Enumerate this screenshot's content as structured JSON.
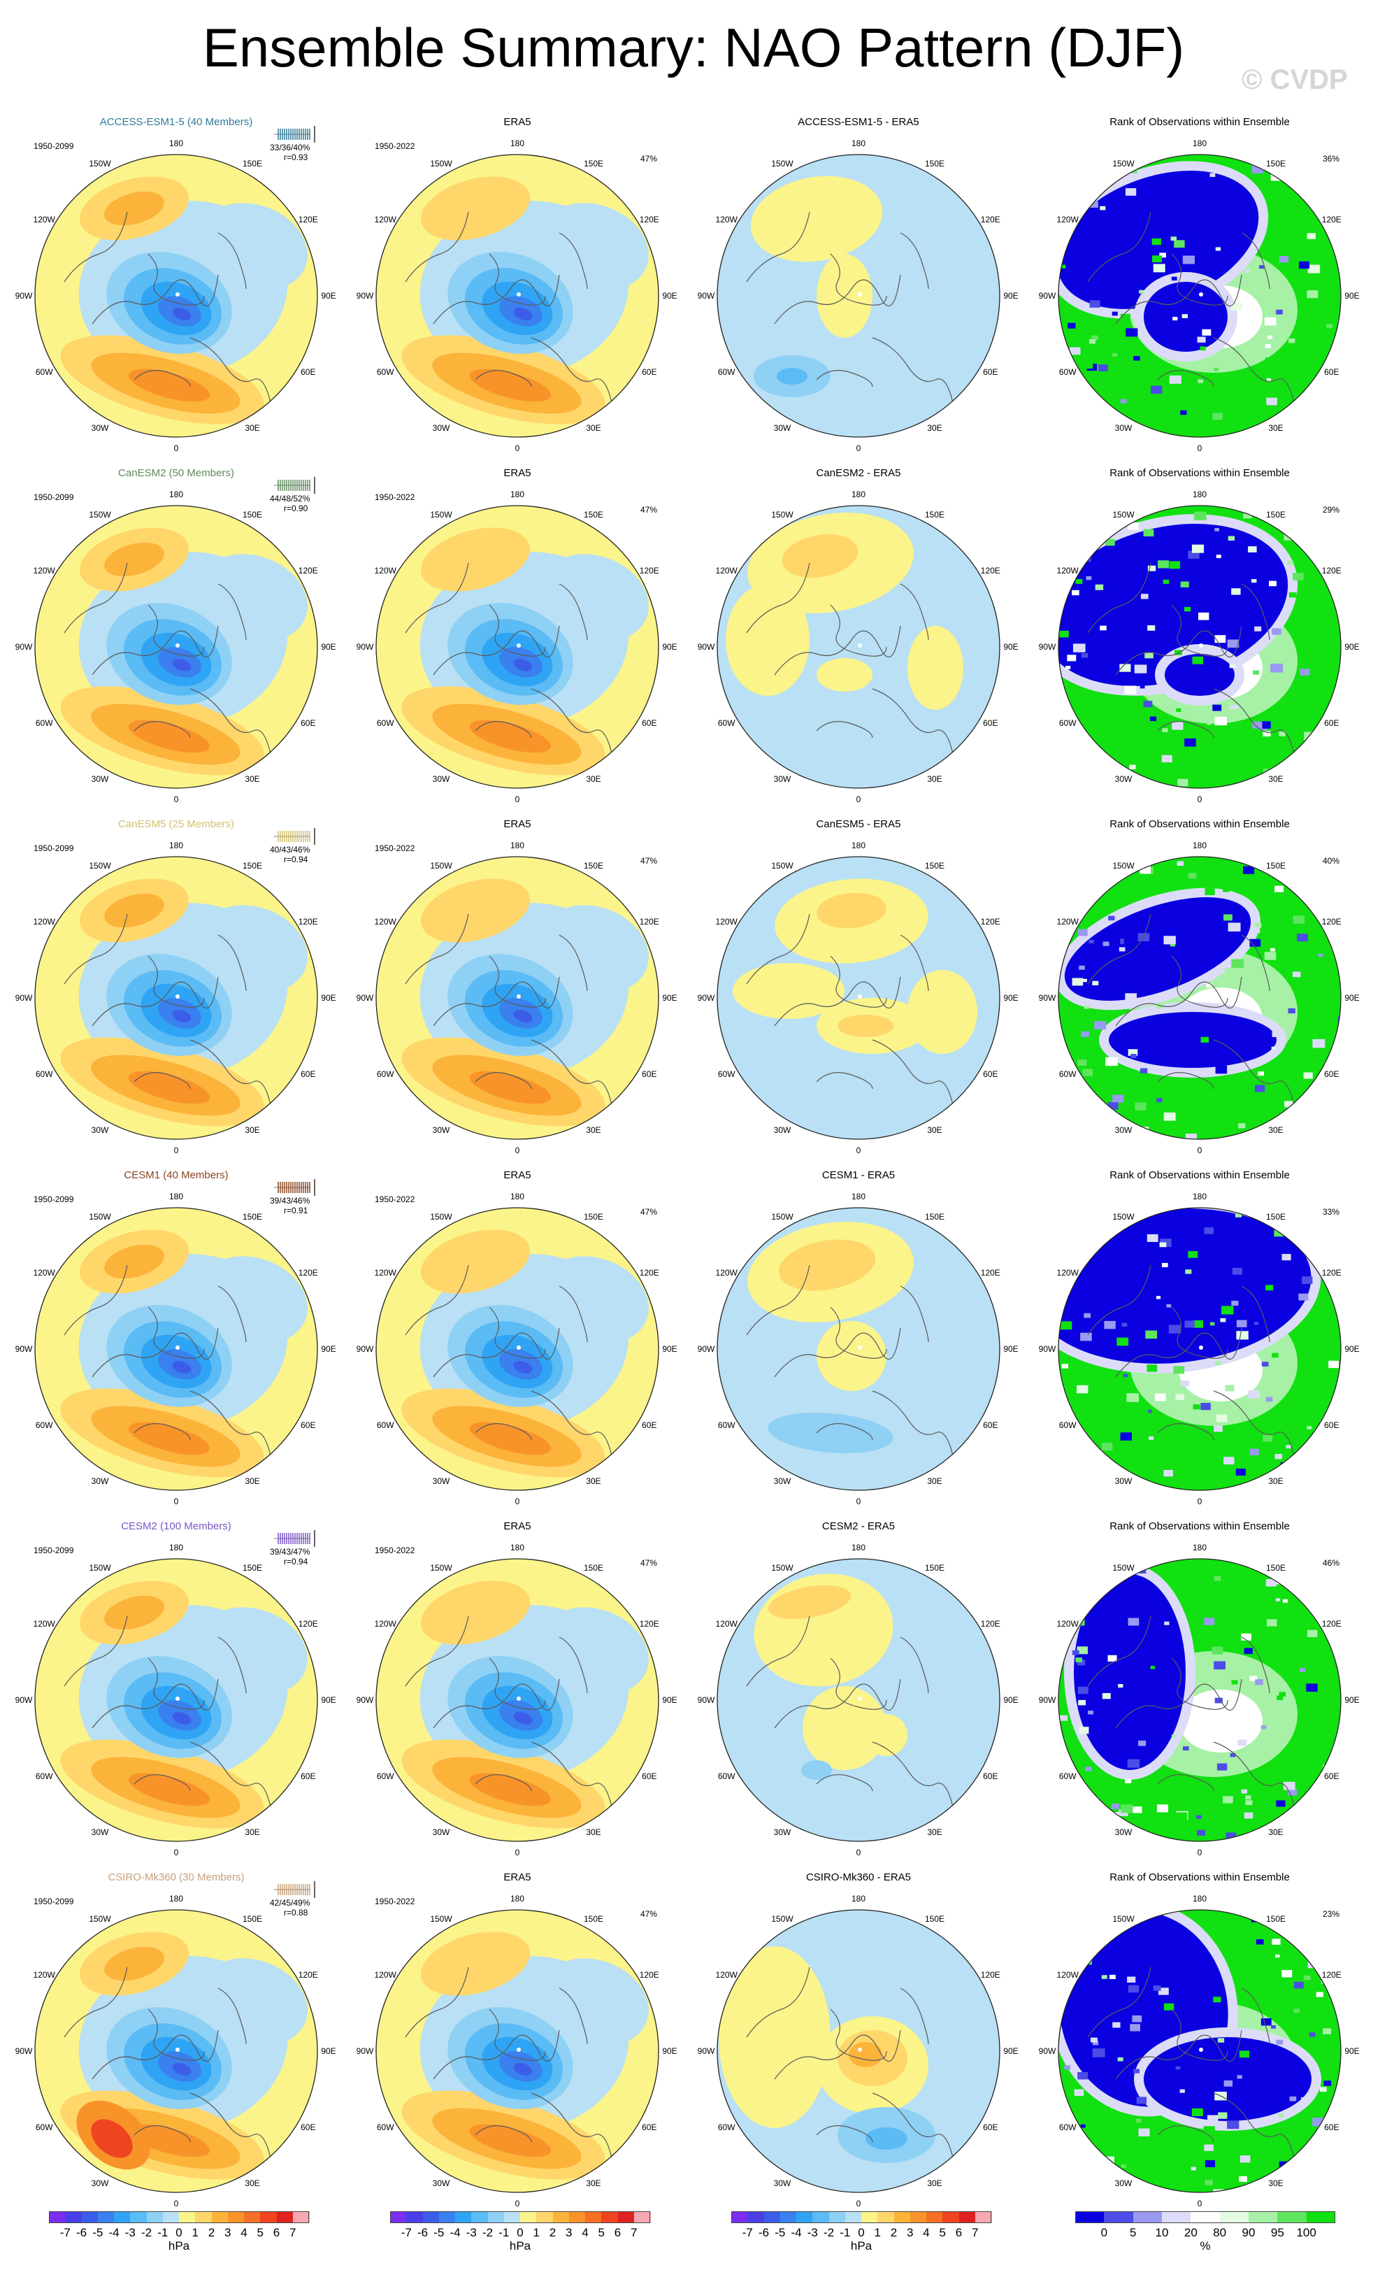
{
  "title": "Ensemble Summary: NAO Pattern (DJF)",
  "watermark": "© CVDP",
  "lon_labels": [
    "180",
    "150E",
    "120E",
    "90E",
    "60E",
    "30E",
    "0",
    "30W",
    "60W",
    "90W",
    "120W",
    "150W"
  ],
  "contour_scale": {
    "unit": "hPa",
    "labels": [
      "-7",
      "-6",
      "-5",
      "-4",
      "-3",
      "-2",
      "-1",
      "0",
      "1",
      "2",
      "3",
      "4",
      "5",
      "6",
      "7"
    ],
    "colors": [
      "#7b2df0",
      "#4a3fe6",
      "#3b5de8",
      "#3a80ee",
      "#2fa4f4",
      "#5abbf5",
      "#8fd0f5",
      "#b9e0f4",
      "#fbf48a",
      "#ffd66a",
      "#fbb33a",
      "#f8932a",
      "#f47025",
      "#ee4420",
      "#df2121",
      "#f7a8b2"
    ]
  },
  "rank_scale": {
    "unit": "%",
    "labels": [
      "0",
      "5",
      "10",
      "20",
      "80",
      "90",
      "95",
      "100"
    ],
    "colors": [
      "#0a00e0",
      "#4c4ce6",
      "#9a9af0",
      "#dcdcf8",
      "#ffffff",
      "#e4fbe4",
      "#a6f1a6",
      "#5de65d",
      "#11e011"
    ]
  },
  "era5_title": "ERA5",
  "era5_period": "1950-2022",
  "era5_pct": "47%",
  "rank_title": "Rank of Observations within Ensemble",
  "rows": [
    {
      "model": "ACCESS-ESM1-5 (40 Members)",
      "color": "#2e7a95",
      "period": "1950-2099",
      "stats": "33/36/40%",
      "corr": "r=0.93",
      "diff_title": "ACCESS-ESM1-5 - ERA5",
      "rank_pct": "36%"
    },
    {
      "model": "CanESM2 (50 Members)",
      "color": "#5f8a5a",
      "period": "1950-2099",
      "stats": "44/48/52%",
      "corr": "r=0.90",
      "diff_title": "CanESM2 - ERA5",
      "rank_pct": "29%"
    },
    {
      "model": "CanESM5 (25 Members)",
      "color": "#d0c070",
      "period": "1950-2099",
      "stats": "40/43/46%",
      "corr": "r=0.94",
      "diff_title": "CanESM5 - ERA5",
      "rank_pct": "40%"
    },
    {
      "model": "CESM1 (40 Members)",
      "color": "#8a4420",
      "period": "1950-2099",
      "stats": "39/43/46%",
      "corr": "r=0.91",
      "diff_title": "CESM1 - ERA5",
      "rank_pct": "33%"
    },
    {
      "model": "CESM2 (100 Members)",
      "color": "#7a55c8",
      "period": "1950-2099",
      "stats": "39/43/47%",
      "corr": "r=0.94",
      "diff_title": "CESM2 - ERA5",
      "rank_pct": "46%"
    },
    {
      "model": "CSIRO-Mk360 (30 Members)",
      "color": "#c8a07a",
      "period": "1950-2099",
      "stats": "42/45/49%",
      "corr": "r=0.88",
      "diff_title": "CSIRO-Mk360 - ERA5",
      "rank_pct": "23%"
    }
  ]
}
